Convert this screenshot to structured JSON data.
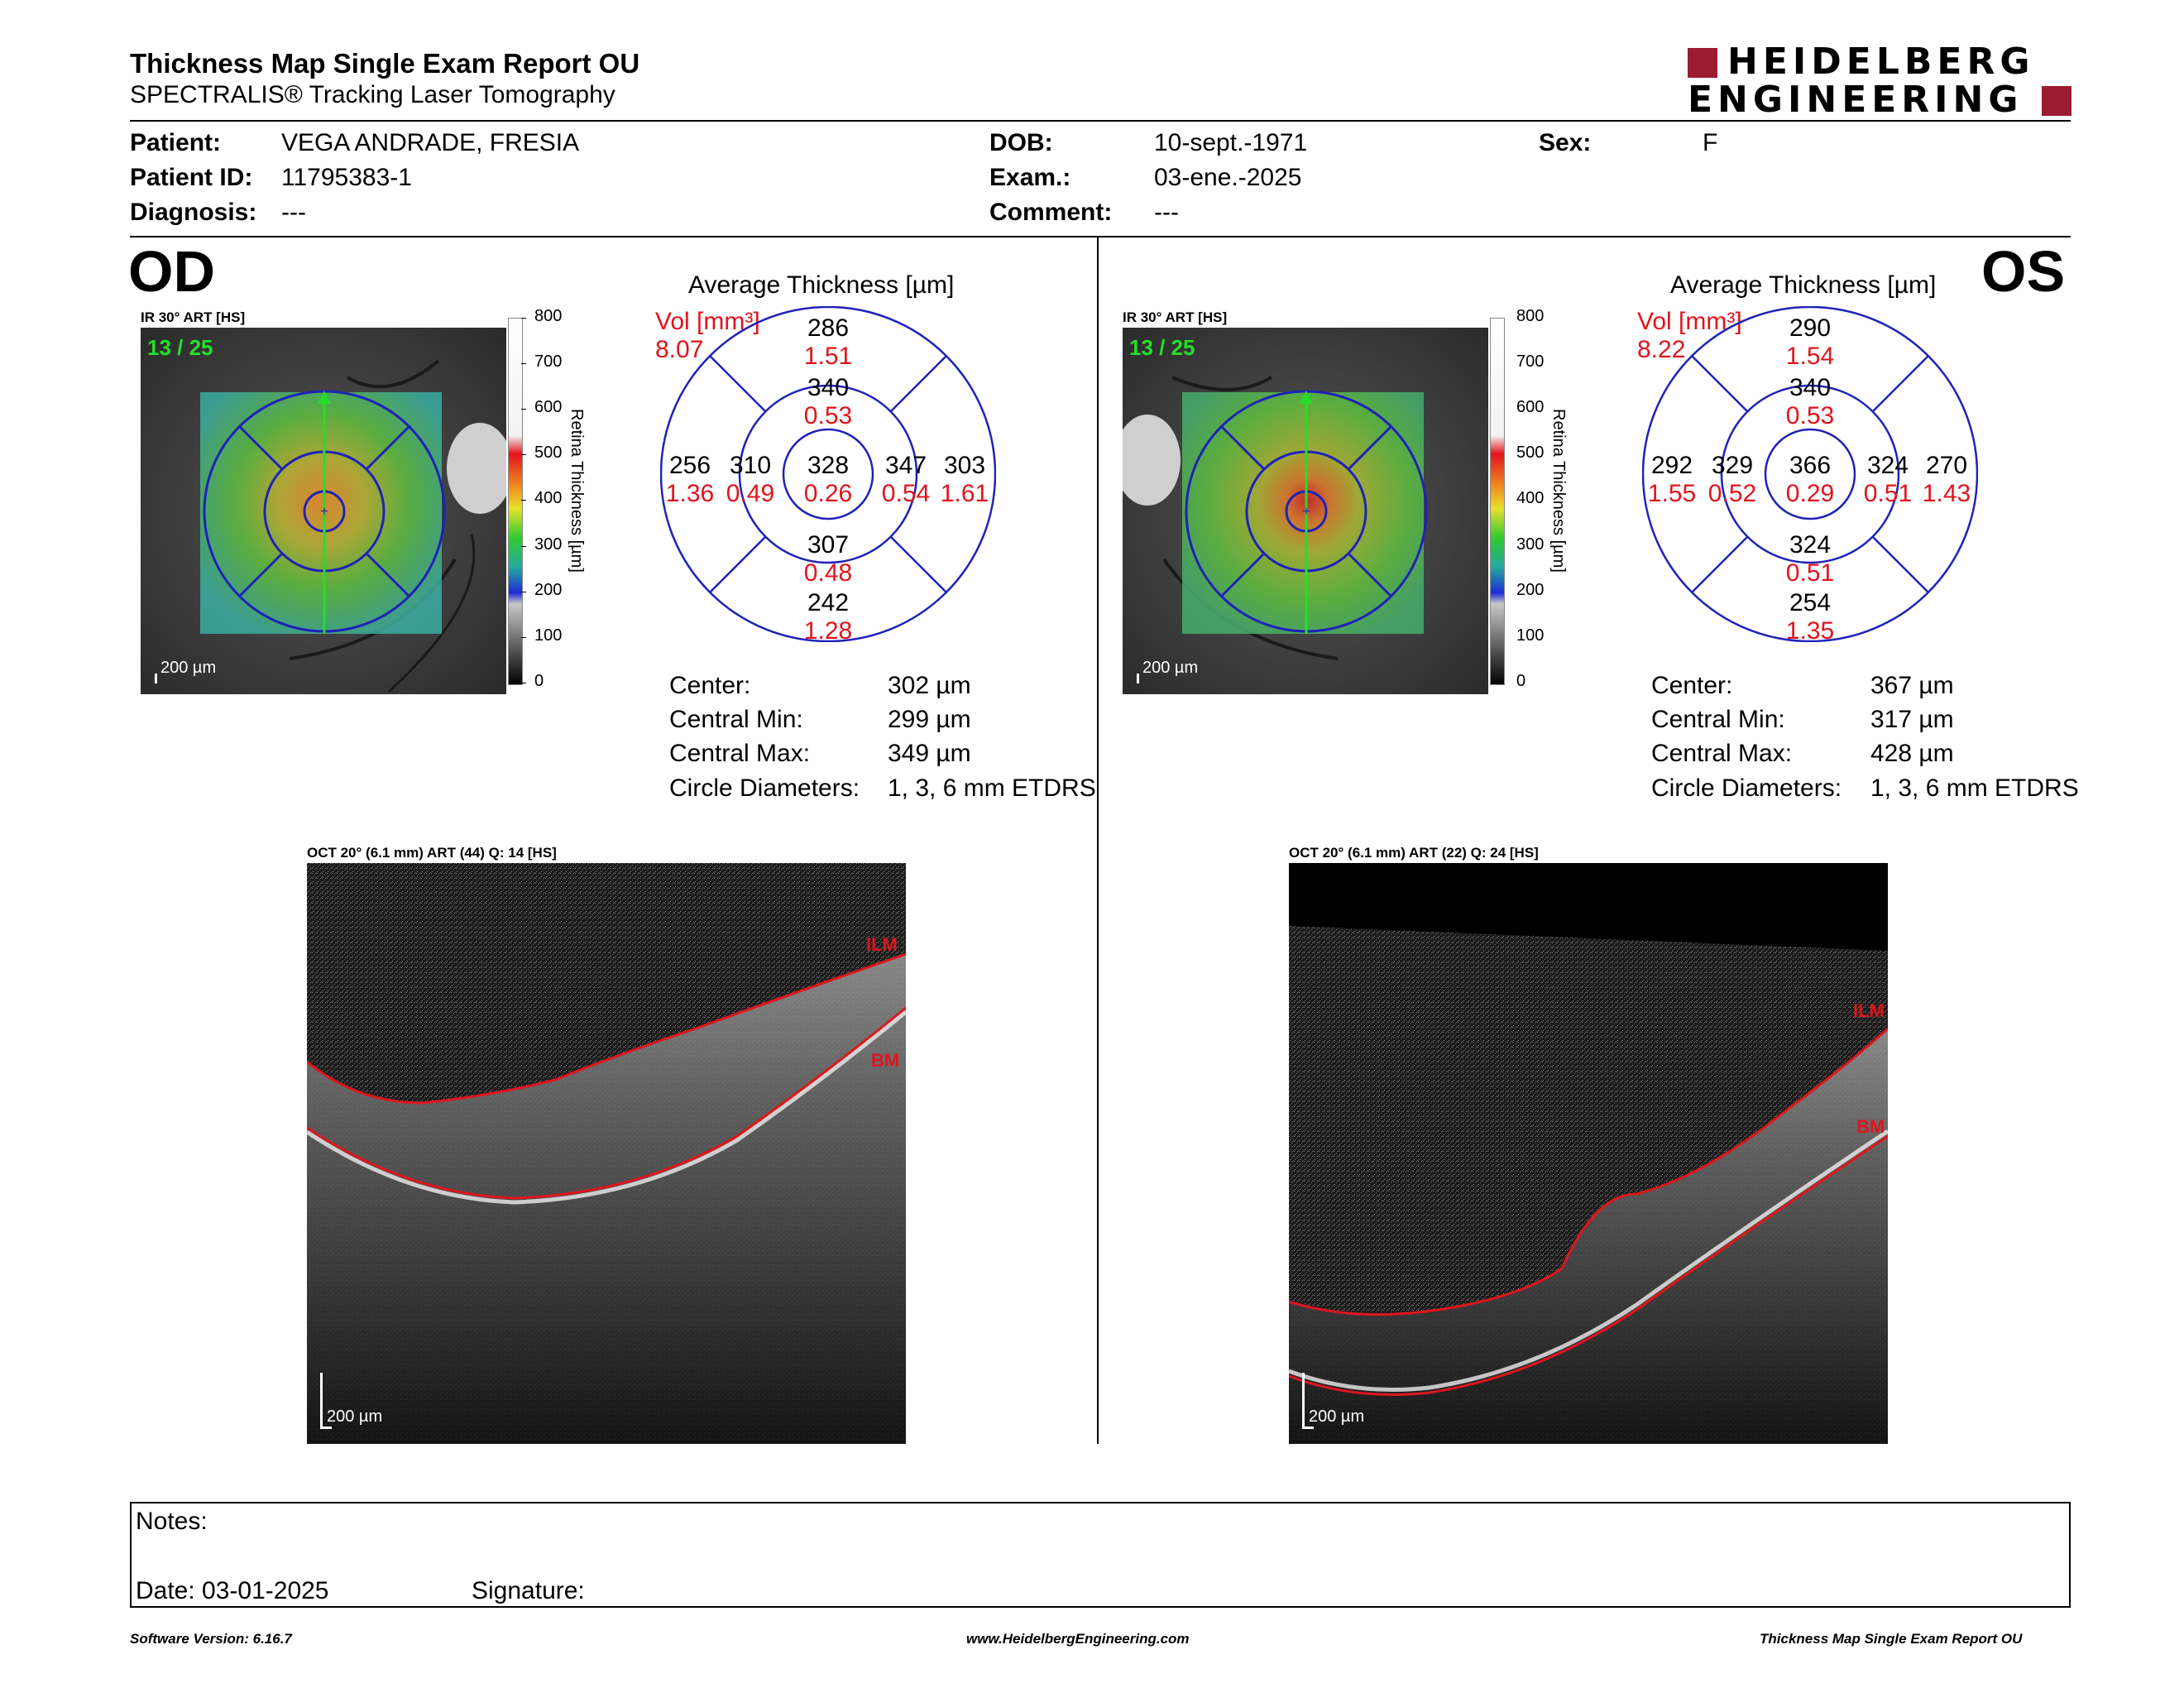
{
  "header": {
    "title": "Thickness Map Single Exam Report OU",
    "subtitle": "SPECTRALIS® Tracking Laser Tomography",
    "logo_line1": "HEIDELBERG",
    "logo_line2": "ENGINEERING",
    "logo_color": "#9b1b30"
  },
  "patient": {
    "patient_label": "Patient:",
    "patient_value": "VEGA ANDRADE, FRESIA",
    "id_label": "Patient ID:",
    "id_value": "11795383-1",
    "diagnosis_label": "Diagnosis:",
    "diagnosis_value": "---",
    "dob_label": "DOB:",
    "dob_value": "10-sept.-1971",
    "exam_label": "Exam.:",
    "exam_value": "03-ene.-2025",
    "comment_label": "Comment:",
    "comment_value": "---",
    "sex_label": "Sex:",
    "sex_value": "F"
  },
  "colorbar": {
    "ticks": [
      "800",
      "700",
      "600",
      "500",
      "400",
      "300",
      "200",
      "100",
      "0"
    ],
    "title": "Retina Thickness [µm]"
  },
  "od": {
    "eye": "OD",
    "ir_label": "IR 30° ART [HS]",
    "counter": "13 / 25",
    "scale": "200 µm",
    "avg_title": "Average Thickness [µm]",
    "vol_label": "Vol [mm³]",
    "vol_value": "8.07",
    "grid": {
      "outer_top": {
        "t": "286",
        "v": "1.51"
      },
      "inner_top": {
        "t": "340",
        "v": "0.53"
      },
      "outer_left": {
        "t": "256",
        "v": "1.36"
      },
      "inner_left": {
        "t": "310",
        "v": "0.49"
      },
      "center": {
        "t": "328",
        "v": "0.26"
      },
      "inner_right": {
        "t": "347",
        "v": "0.54"
      },
      "outer_right": {
        "t": "303",
        "v": "1.61"
      },
      "inner_bottom": {
        "t": "307",
        "v": "0.48"
      },
      "outer_bottom": {
        "t": "242",
        "v": "1.28"
      }
    },
    "stats": {
      "center_label": "Center:",
      "center_value": "302 µm",
      "min_label": "Central Min:",
      "min_value": "299 µm",
      "max_label": "Central Max:",
      "max_value": "349 µm",
      "diam_label": "Circle Diameters:",
      "diam_value": "1, 3, 6 mm ETDRS"
    },
    "oct_label": "OCT 20° (6.1 mm) ART (44) Q: 14 [HS]",
    "ilm": "ILM",
    "bm": "BM",
    "oct_scale": "200 µm"
  },
  "os": {
    "eye": "OS",
    "ir_label": "IR 30° ART [HS]",
    "counter": "13 / 25",
    "scale": "200 µm",
    "avg_title": "Average Thickness [µm]",
    "vol_label": "Vol [mm³]",
    "vol_value": "8.22",
    "grid": {
      "outer_top": {
        "t": "290",
        "v": "1.54"
      },
      "inner_top": {
        "t": "340",
        "v": "0.53"
      },
      "outer_left": {
        "t": "292",
        "v": "1.55"
      },
      "inner_left": {
        "t": "329",
        "v": "0.52"
      },
      "center": {
        "t": "366",
        "v": "0.29"
      },
      "inner_right": {
        "t": "324",
        "v": "0.51"
      },
      "outer_right": {
        "t": "270",
        "v": "1.43"
      },
      "inner_bottom": {
        "t": "324",
        "v": "0.51"
      },
      "outer_bottom": {
        "t": "254",
        "v": "1.35"
      }
    },
    "stats": {
      "center_label": "Center:",
      "center_value": "367 µm",
      "min_label": "Central Min:",
      "min_value": "317 µm",
      "max_label": "Central Max:",
      "max_value": "428 µm",
      "diam_label": "Circle Diameters:",
      "diam_value": "1, 3, 6 mm ETDRS"
    },
    "oct_label": "OCT 20° (6.1 mm) ART (22) Q: 24 [HS]",
    "ilm": "ILM",
    "bm": "BM",
    "oct_scale": "200 µm"
  },
  "notes": {
    "notes_label": "Notes:",
    "date_label": "Date: 03-01-2025",
    "signature_label": "Signature:"
  },
  "footer": {
    "version": "Software Version: 6.16.7",
    "url": "www.HeidelbergEngineering.com",
    "report": "Thickness Map Single Exam Report OU"
  },
  "colors": {
    "grid_blue": "#1f22b8",
    "value_red": "#e2141c",
    "counter_green": "#22e02a",
    "layer_red": "#e0151c"
  }
}
